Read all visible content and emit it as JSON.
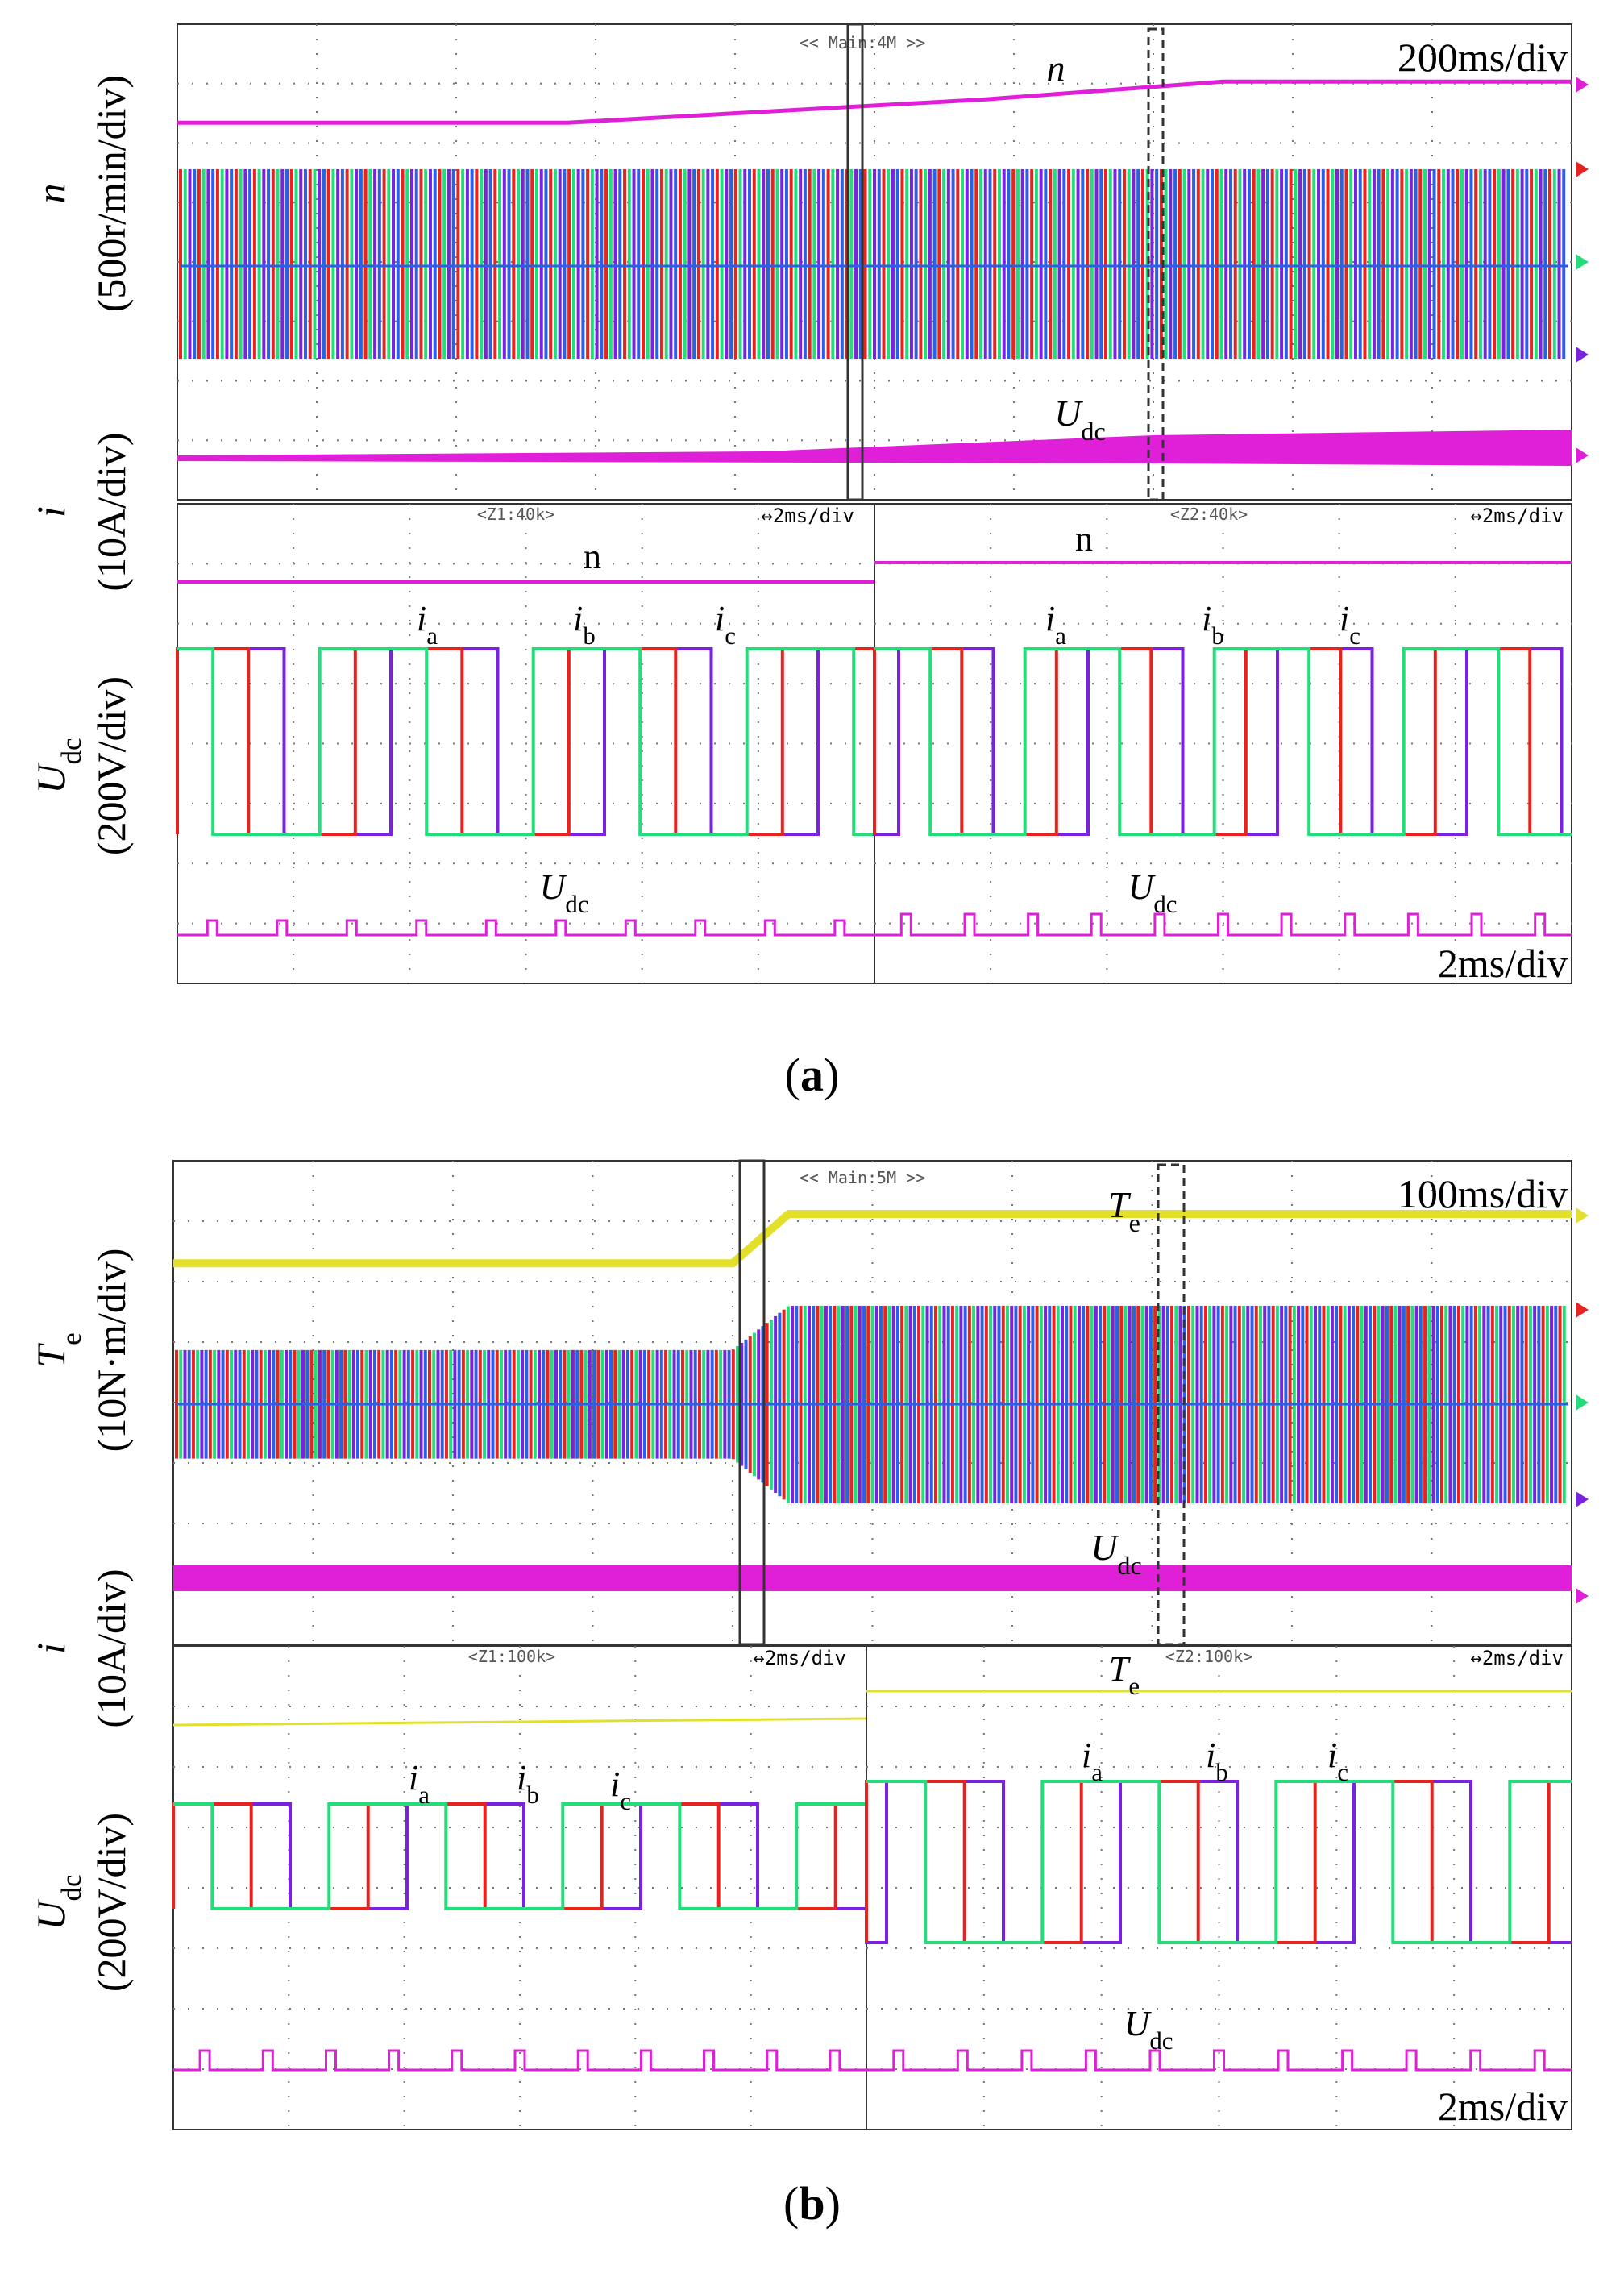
{
  "chart_data": [
    {
      "type": "line",
      "panel": "(a)",
      "main_scope": {
        "tag": "<< Main:4M >>",
        "time_div": "200ms/div",
        "y_labels": [
          {
            "sym": "n",
            "unit": "(500r/min/div)"
          },
          {
            "sym": "i",
            "unit": "(10A/div)"
          },
          {
            "sym": "U",
            "sub": "dc",
            "unit": "(200V/div)"
          }
        ],
        "series": [
          {
            "name": "n",
            "color": "#e020d8",
            "x": [
              0,
              2.8,
              5.8,
              7.5,
              10
            ],
            "y": [
              0.1,
              0.1,
              0.6,
              0.98,
              0.98
            ]
          },
          {
            "name": "Udc",
            "color": "#e020d8",
            "x": [
              0,
              4.2,
              7.0,
              10
            ],
            "y": [
              0.05,
              0.1,
              0.35,
              0.45
            ]
          }
        ],
        "labels": [
          {
            "text": "n",
            "italic": true
          },
          {
            "text": "U",
            "sub": "dc",
            "italic": true
          }
        ]
      },
      "zoom_left": {
        "tag": "<Z1:40k>",
        "time_div": "↔2ms/div",
        "labels": [
          {
            "text": "n"
          },
          {
            "text": "i",
            "sub": "a"
          },
          {
            "text": "i",
            "sub": "b"
          },
          {
            "text": "i",
            "sub": "c"
          },
          {
            "text": "U",
            "sub": "dc"
          }
        ]
      },
      "zoom_right": {
        "tag": "<Z2:40k>",
        "time_div": "↔2ms/div",
        "bottom_div": "2ms/div",
        "labels": [
          {
            "text": "n"
          },
          {
            "text": "i",
            "sub": "a"
          },
          {
            "text": "i",
            "sub": "b"
          },
          {
            "text": "i",
            "sub": "c"
          },
          {
            "text": "U",
            "sub": "dc"
          }
        ]
      },
      "colors": {
        "ia": "#e8221e",
        "ib": "#22dd7a",
        "ic": "#7a22e0",
        "pink": "#e020d8",
        "yellow": "#e2e02a"
      }
    },
    {
      "type": "line",
      "panel": "(b)",
      "main_scope": {
        "tag": "<< Main:5M >>",
        "time_div": "100ms/div",
        "y_labels": [
          {
            "sym": "T",
            "sub": "e",
            "unit": "(10N·m/div)"
          },
          {
            "sym": "i",
            "unit": "(10A/div)"
          },
          {
            "sym": "U",
            "sub": "dc",
            "unit": "(200V/div)"
          }
        ],
        "series": [
          {
            "name": "Te",
            "color": "#e2e02a",
            "x": [
              0,
              4.0,
              4.4,
              10
            ],
            "y": [
              0.4,
              0.4,
              1.0,
              1.0
            ]
          }
        ],
        "labels": [
          {
            "text": "T",
            "sub": "e",
            "italic": true
          },
          {
            "text": "U",
            "sub": "dc",
            "italic": true
          }
        ]
      },
      "zoom_left": {
        "tag": "<Z1:100k>",
        "time_div": "↔2ms/div",
        "labels": [
          {
            "text": "i",
            "sub": "a"
          },
          {
            "text": "i",
            "sub": "b"
          },
          {
            "text": "i",
            "sub": "c"
          }
        ]
      },
      "zoom_right": {
        "tag": "<Z2:100k>",
        "time_div": "↔2ms/div",
        "bottom_div": "2ms/div",
        "labels": [
          {
            "text": "T",
            "sub": "e"
          },
          {
            "text": "i",
            "sub": "a"
          },
          {
            "text": "i",
            "sub": "b"
          },
          {
            "text": "i",
            "sub": "c"
          },
          {
            "text": "U",
            "sub": "dc"
          }
        ]
      }
    }
  ],
  "captions": {
    "a": "a",
    "b": "b"
  }
}
